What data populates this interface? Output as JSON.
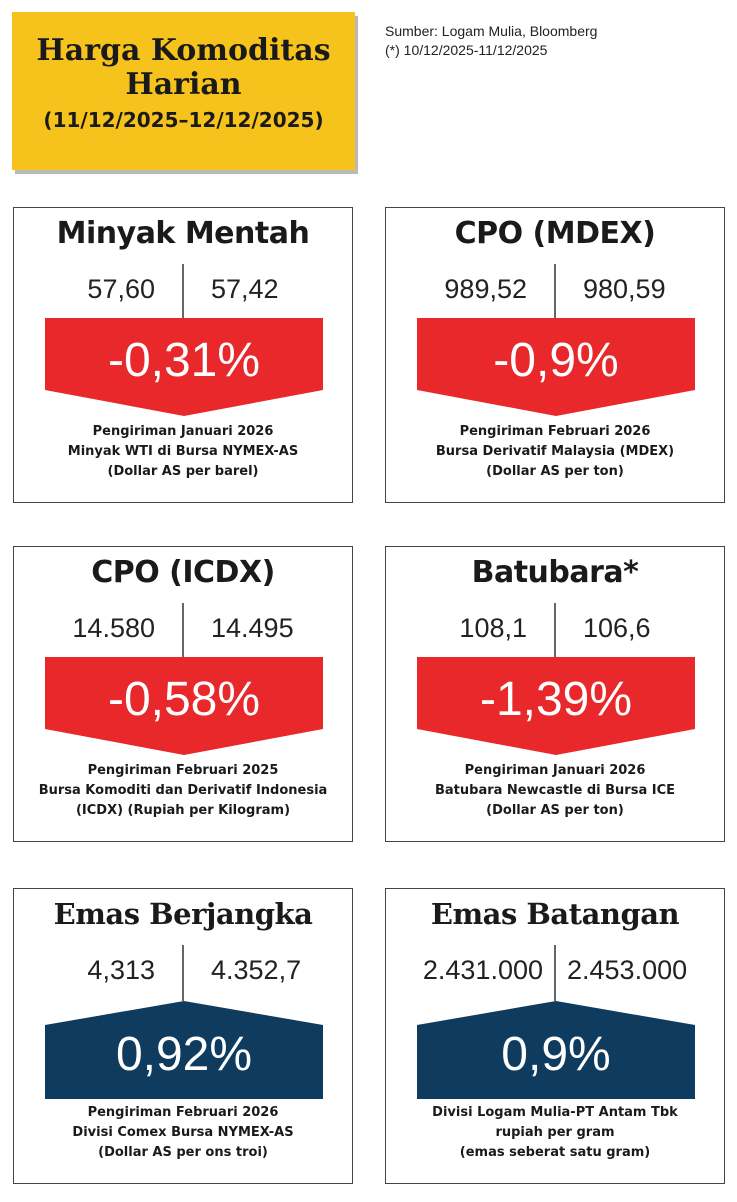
{
  "header": {
    "title_line1": "Harga Komoditas",
    "title_line2": "Harian",
    "date_range": "(11/12/2025–12/12/2025)"
  },
  "source": {
    "line1": "Sumber: Logam Mulia, Bloomberg",
    "line2": "(*) 10/12/2025-11/12/2025"
  },
  "colors": {
    "down": "#e8282b",
    "up": "#0f3b5e",
    "header_bg": "#f6c21c"
  },
  "cards": [
    {
      "title": "Minyak Mentah",
      "prev": "57,60",
      "curr": "57,42",
      "change": "-0,31%",
      "direction": "down",
      "desc1": "Pengiriman Januari 2026",
      "desc2": "Minyak WTI di Bursa NYMEX-AS",
      "desc3": "(Dollar AS per barel)"
    },
    {
      "title": "CPO (MDEX)",
      "prev": "989,52",
      "curr": "980,59",
      "change": "-0,9%",
      "direction": "down",
      "desc1": "Pengiriman Februari 2026",
      "desc2": "Bursa Derivatif Malaysia (MDEX)",
      "desc3": "(Dollar AS per ton)"
    },
    {
      "title": "CPO (ICDX)",
      "prev": "14.580",
      "curr": "14.495",
      "change": "-0,58%",
      "direction": "down",
      "desc1": "Pengiriman Februari 2025",
      "desc2": "Bursa Komoditi dan Derivatif Indonesia",
      "desc3": "(ICDX) (Rupiah per Kilogram)"
    },
    {
      "title": "Batubara*",
      "prev": "108,1",
      "curr": "106,6",
      "change": "-1,39%",
      "direction": "down",
      "desc1": "Pengiriman Januari 2026",
      "desc2": "Batubara Newcastle di Bursa ICE",
      "desc3": "(Dollar AS per ton)"
    },
    {
      "title": "Emas Berjangka",
      "prev": "4,313",
      "curr": "4.352,7",
      "change": "0,92%",
      "direction": "up",
      "desc1": "Pengiriman Februari 2026",
      "desc2": "Divisi Comex Bursa NYMEX-AS",
      "desc3": "(Dollar AS per ons troi)"
    },
    {
      "title": "Emas Batangan",
      "prev": "2.431.000",
      "curr": "2.453.000",
      "change": "0,9%",
      "direction": "up",
      "desc1": "Divisi Logam Mulia-PT Antam Tbk",
      "desc2": "rupiah per gram",
      "desc3": "(emas seberat satu gram)"
    }
  ]
}
